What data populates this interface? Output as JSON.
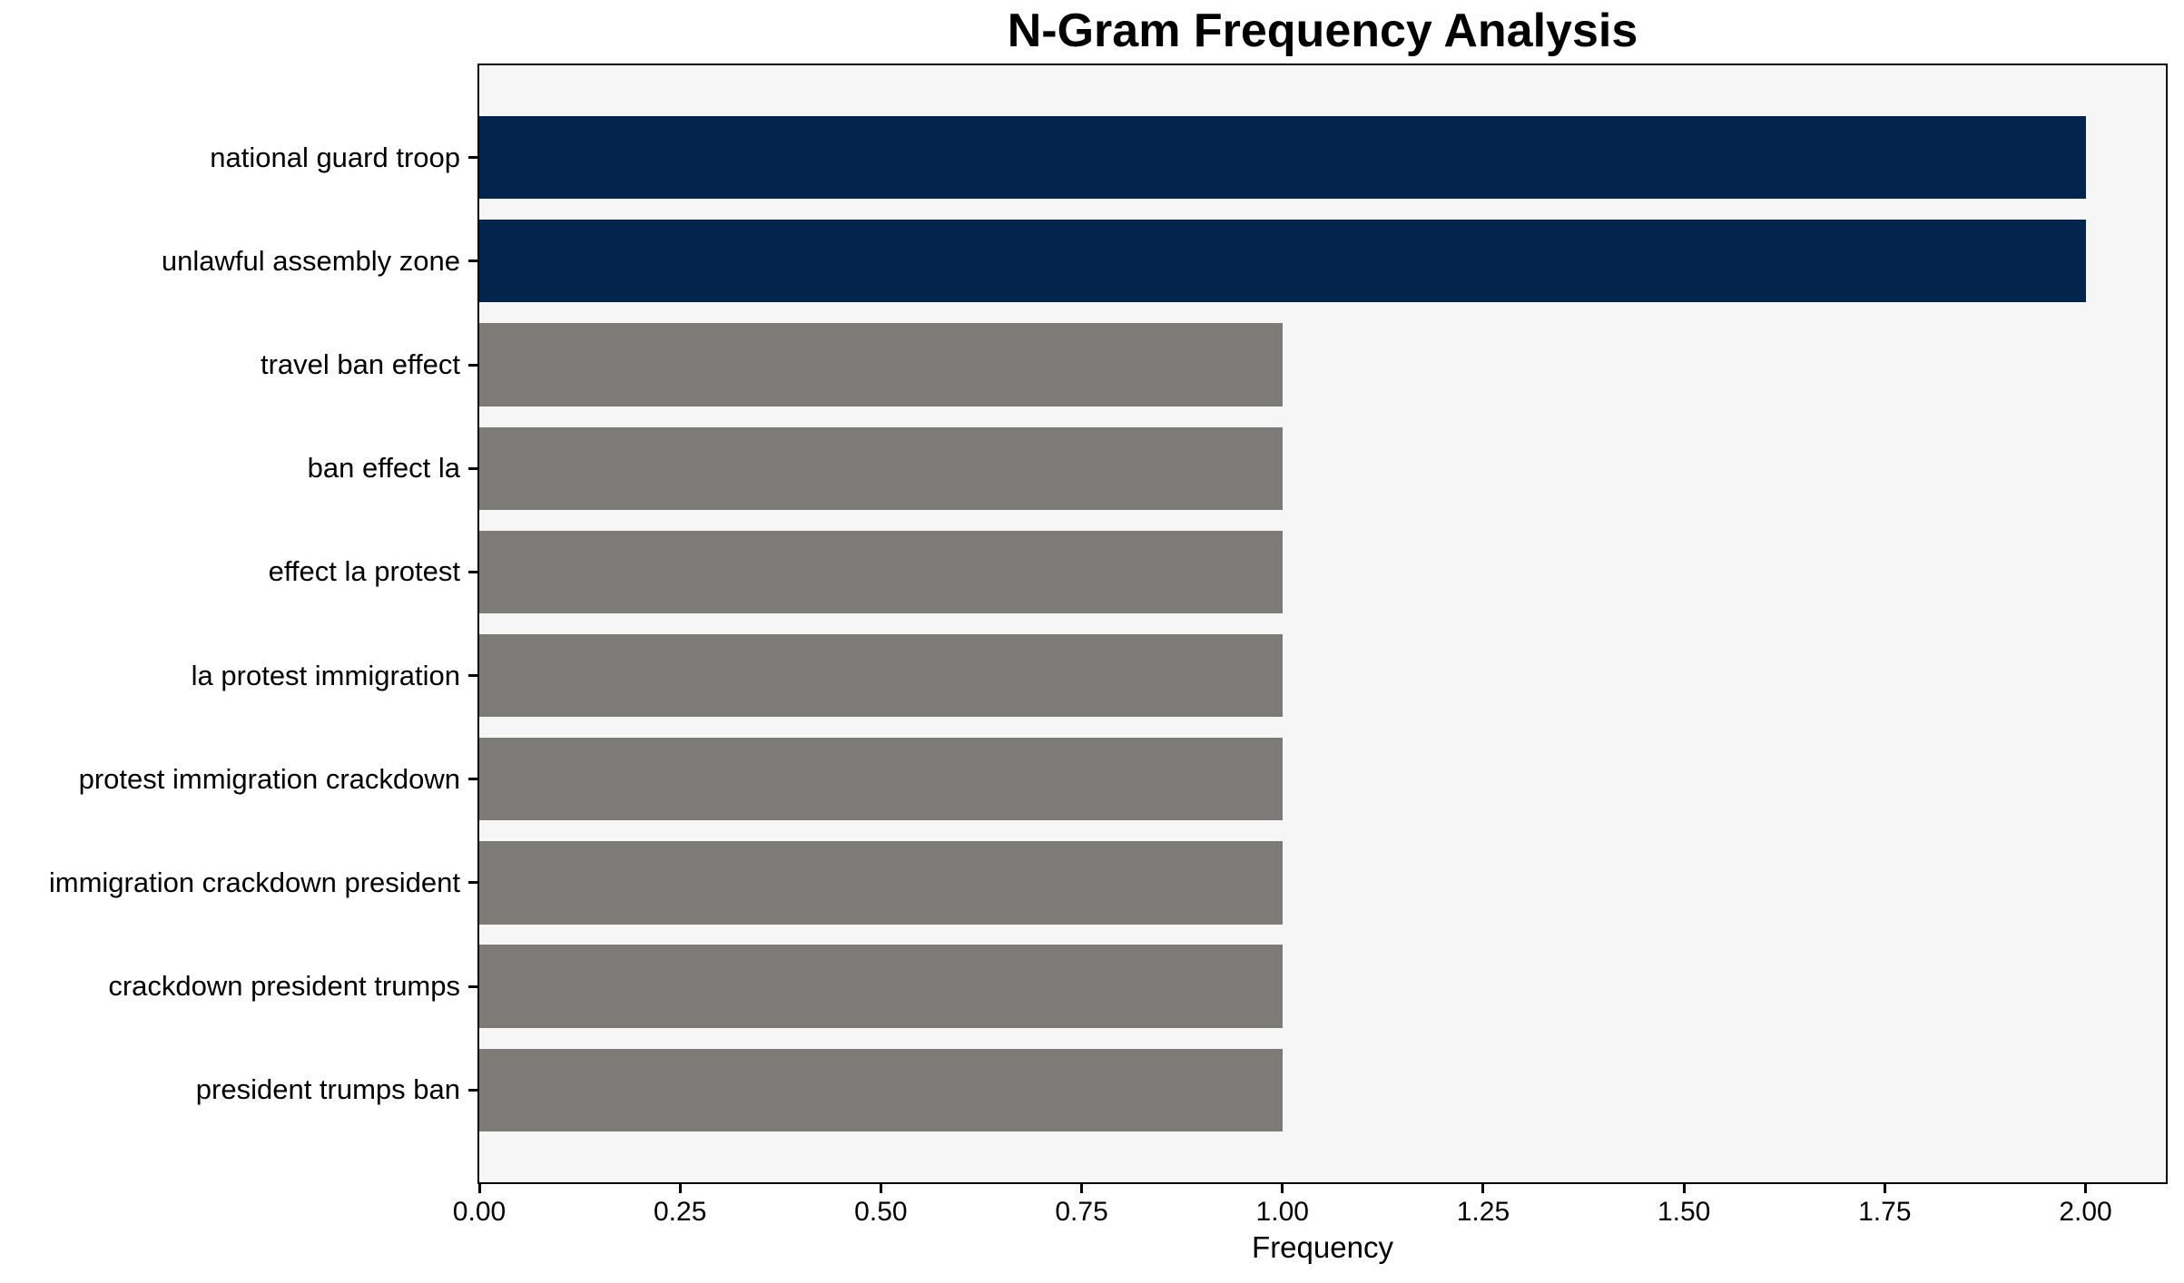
{
  "chart_data": {
    "type": "bar",
    "orientation": "horizontal",
    "title": "N-Gram Frequency Analysis",
    "xlabel": "Frequency",
    "ylabel": "",
    "categories": [
      "national guard troop",
      "unlawful assembly zone",
      "travel ban effect",
      "ban effect la",
      "effect la protest",
      "la protest immigration",
      "protest immigration crackdown",
      "immigration crackdown president",
      "crackdown president trumps",
      "president trumps ban"
    ],
    "values": [
      2,
      2,
      1,
      1,
      1,
      1,
      1,
      1,
      1,
      1
    ],
    "bar_colors": [
      "#02244d",
      "#02244d",
      "#7c7b78",
      "#7c7b78",
      "#7c7b78",
      "#7c7b78",
      "#7c7b78",
      "#7c7b78",
      "#7c7b78",
      "#7c7b78"
    ],
    "xlim": [
      0,
      2.1
    ],
    "xticks": [
      0.0,
      0.25,
      0.5,
      0.75,
      1.0,
      1.25,
      1.5,
      1.75,
      2.0
    ],
    "xtick_labels": [
      "0.00",
      "0.25",
      "0.50",
      "0.75",
      "1.00",
      "1.25",
      "1.50",
      "1.75",
      "2.00"
    ],
    "grid": false,
    "legend": null,
    "colors": {
      "highlight_bar": "#02244d",
      "default_bar": "#7c7b78",
      "plot_background": "#f7f6f6",
      "figure_background": "#ffffff",
      "spine": "#000000",
      "text": "#000000"
    }
  }
}
